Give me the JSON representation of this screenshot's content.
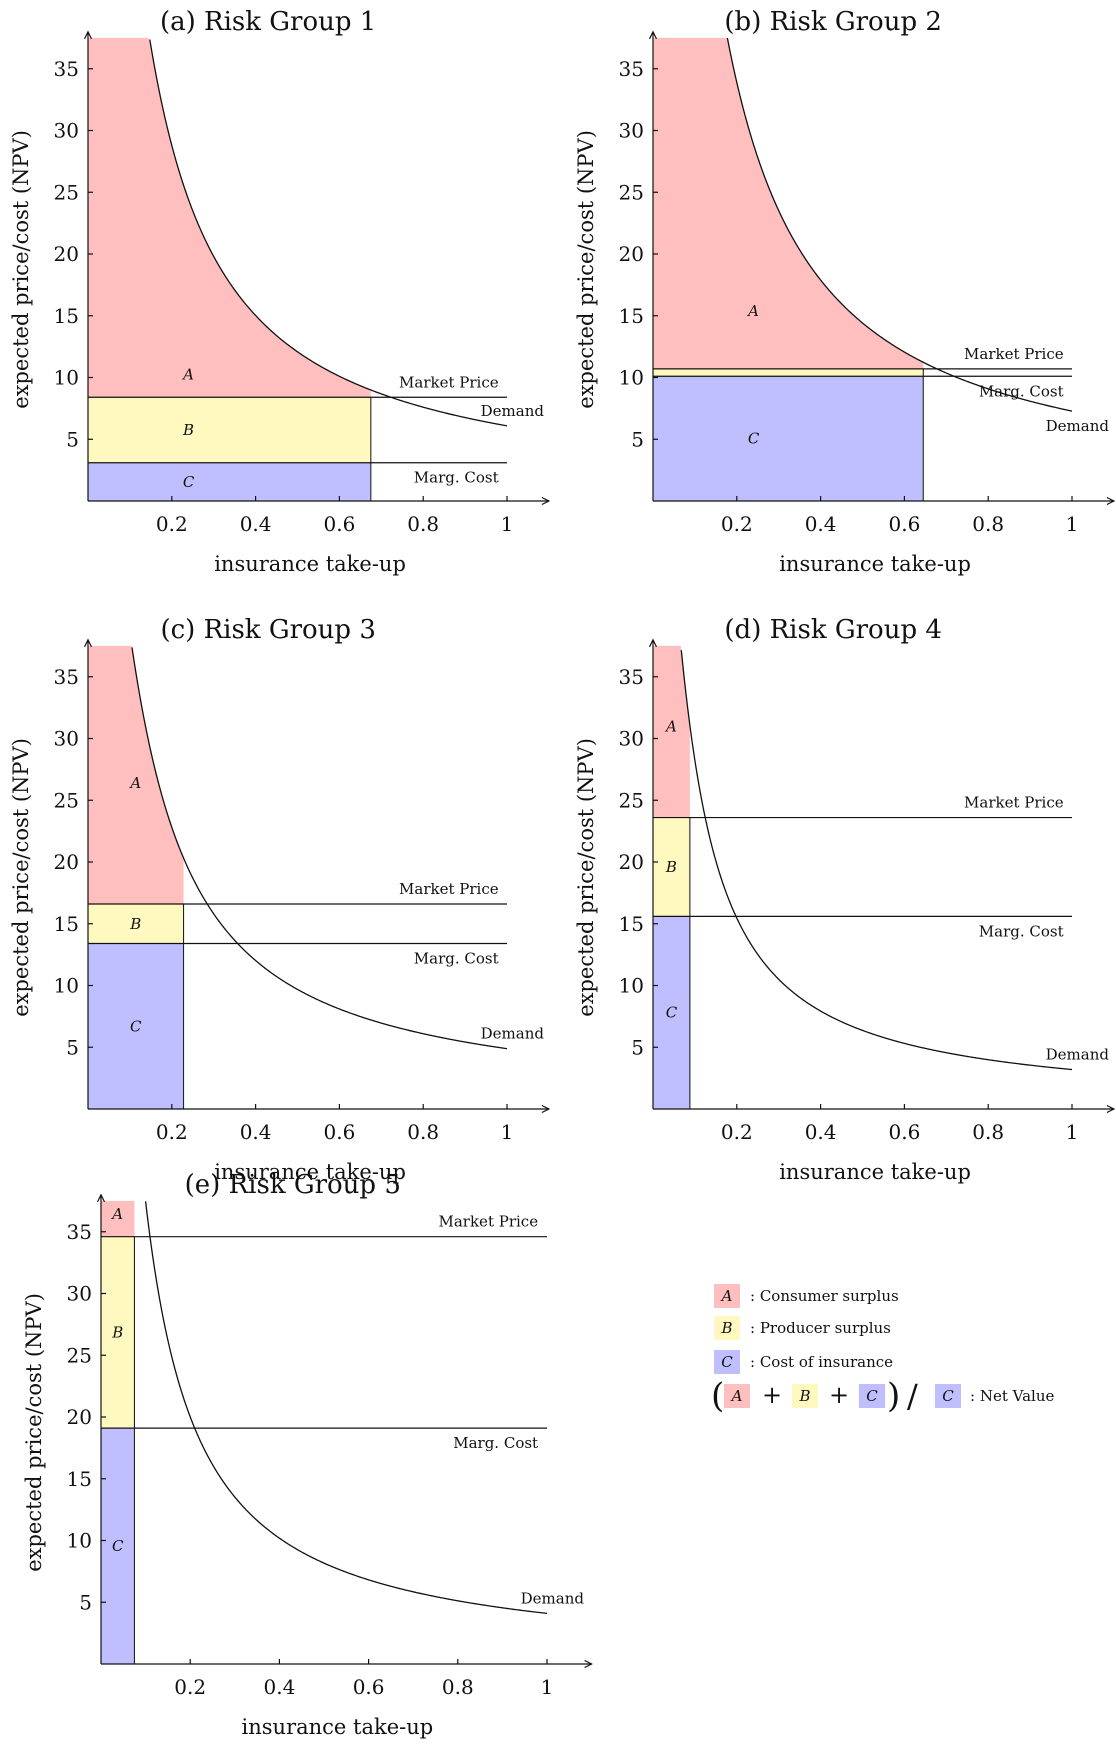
{
  "chart_data": [
    {
      "panel": "a",
      "type": "area",
      "title": "(a) Risk Group 1",
      "xlabel": "insurance take-up",
      "ylabel": "expected price/cost (NPV)",
      "xticks": [
        0.2,
        0.4,
        0.6,
        0.8,
        1
      ],
      "yticks": [
        5,
        10,
        15,
        20,
        25,
        30,
        35
      ],
      "xlim": [
        0,
        1.1
      ],
      "ylim": [
        0,
        37.5
      ],
      "demand_curve": {
        "name": "Demand",
        "a": 6.1,
        "x0": 0.07
      },
      "market_price": 8.4,
      "marginal_cost": 3.1,
      "take_up": 0.675,
      "line_labels": {
        "market_price": "Market Price",
        "demand": "Demand",
        "marginal_cost": "Marg. Cost"
      },
      "region_labels": {
        "A": "A",
        "B": "B",
        "C": "C"
      }
    },
    {
      "panel": "b",
      "type": "area",
      "title": "(b) Risk Group 2",
      "xlabel": "insurance take-up",
      "ylabel": "expected price/cost (NPV)",
      "xticks": [
        0.2,
        0.4,
        0.6,
        0.8,
        1
      ],
      "yticks": [
        5,
        10,
        15,
        20,
        25,
        30,
        35
      ],
      "xlim": [
        0,
        1.1
      ],
      "ylim": [
        0,
        37.5
      ],
      "demand_curve": {
        "name": "Demand",
        "a": 7.3,
        "x0": 0.08
      },
      "market_price": 10.7,
      "marginal_cost": 10.1,
      "take_up": 0.645,
      "line_labels": {
        "market_price": "Market Price",
        "demand": "Demand",
        "marginal_cost": "Marg. Cost"
      },
      "region_labels": {
        "A": "A",
        "C": "C"
      }
    },
    {
      "panel": "c",
      "type": "area",
      "title": "(c) Risk Group 3",
      "xlabel": "insurance take-up",
      "ylabel": "expected price/cost (NPV)",
      "xticks": [
        0.2,
        0.4,
        0.6,
        0.8,
        1
      ],
      "yticks": [
        5,
        10,
        15,
        20,
        25,
        30,
        35
      ],
      "xlim": [
        0,
        1.1
      ],
      "ylim": [
        0,
        37.5
      ],
      "demand_curve": {
        "name": "Demand",
        "a": 4.9,
        "x0": 0.0785
      },
      "market_price": 16.6,
      "marginal_cost": 13.4,
      "take_up": 0.228,
      "line_labels": {
        "market_price": "Market Price",
        "demand": "Demand",
        "marginal_cost": "Marg. Cost"
      },
      "region_labels": {
        "A": "A",
        "B": "B",
        "C": "C"
      }
    },
    {
      "panel": "d",
      "type": "area",
      "title": "(d) Risk Group 4",
      "xlabel": "insurance take-up",
      "ylabel": "expected price/cost (NPV)",
      "xticks": [
        0.2,
        0.4,
        0.6,
        0.8,
        1
      ],
      "yticks": [
        5,
        10,
        15,
        20,
        25,
        30,
        35
      ],
      "xlim": [
        0,
        1.1
      ],
      "ylim": [
        0,
        37.5
      ],
      "demand_curve": {
        "name": "Demand",
        "a": 3.2,
        "x0": 0.0535
      },
      "market_price": 23.6,
      "marginal_cost": 15.6,
      "take_up": 0.088,
      "line_labels": {
        "market_price": "Market Price",
        "demand": "Demand",
        "marginal_cost": "Marg. Cost"
      },
      "region_labels": {
        "A": "A",
        "B": "B",
        "C": "C"
      }
    },
    {
      "panel": "e",
      "type": "area",
      "title": "(e) Risk Group 5",
      "xlabel": "insurance take-up",
      "ylabel": "expected price/cost (NPV)",
      "xticks": [
        0.2,
        0.4,
        0.6,
        0.8,
        1
      ],
      "yticks": [
        5,
        10,
        15,
        20,
        25,
        30,
        35
      ],
      "xlim": [
        0,
        1.1
      ],
      "ylim": [
        0,
        37.5
      ],
      "demand_curve": {
        "name": "Demand",
        "a": 4.1,
        "x0": 0.0445
      },
      "market_price": 34.6,
      "marginal_cost": 19.1,
      "take_up": 0.075,
      "line_labels": {
        "market_price": "Market Price",
        "demand": "Demand",
        "marginal_cost": "Marg. Cost"
      },
      "region_labels": {
        "A": "A",
        "B": "B",
        "C": "C"
      }
    }
  ],
  "legend": {
    "items": [
      {
        "key": "A",
        "text": ": Consumer surplus",
        "color": "#ffbfbf"
      },
      {
        "key": "B",
        "text": ": Producer surplus",
        "color": "#fff9bf"
      },
      {
        "key": "C",
        "text": ": Cost of insurance",
        "color": "#bfbfff"
      }
    ],
    "formula": {
      "open_paren": "(",
      "terms": [
        "A",
        "B",
        "C"
      ],
      "plus": "+",
      "close_paren": ")",
      "slash": "/",
      "divisor": "C",
      "text": ": Net Value"
    }
  },
  "colors": {
    "A": "#ffbfbf",
    "B": "#fff9bf",
    "C": "#bfbfff"
  }
}
